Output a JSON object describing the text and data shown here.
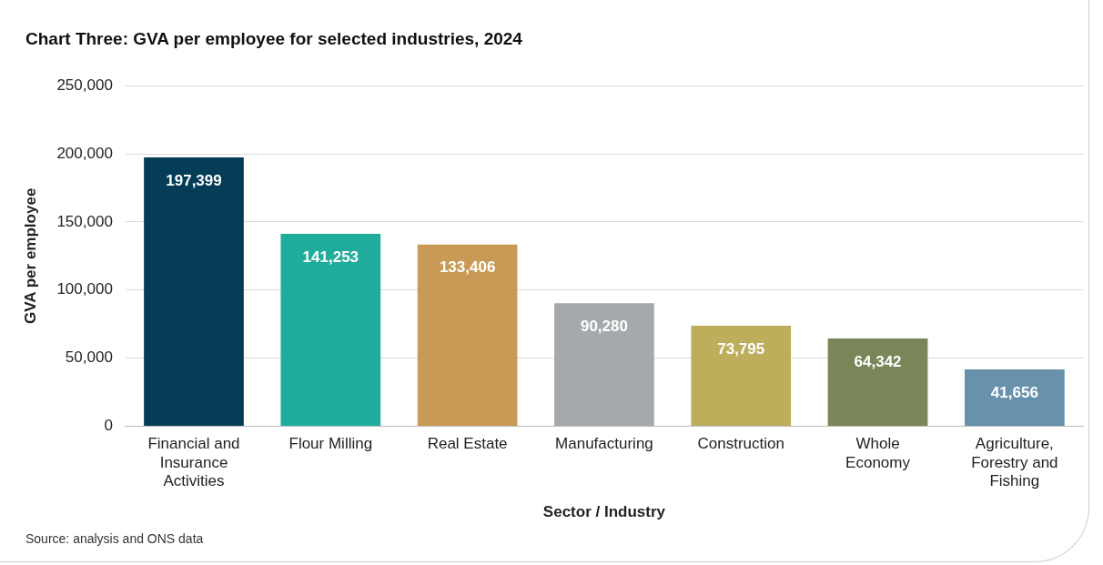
{
  "chart_data": {
    "type": "bar",
    "title": "Chart Three: GVA per employee for selected industries, 2024",
    "xlabel": "Sector / Industry",
    "ylabel": "GVA per employee",
    "categories": [
      "Financial and Insurance Activities",
      "Flour Milling",
      "Real Estate",
      "Manufacturing",
      "Construction",
      "Whole Economy",
      "Agriculture, Forestry and Fishing"
    ],
    "values": [
      197399,
      141253,
      133406,
      90280,
      73795,
      64342,
      41656
    ],
    "colors": [
      "#053d57",
      "#20ac9c",
      "#c99a55",
      "#a5a9ac",
      "#bdae5c",
      "#7a8657",
      "#6891ab"
    ],
    "ylim": [
      0,
      250000
    ],
    "yticks": [
      {
        "value": 0,
        "label": "0"
      },
      {
        "value": 50000,
        "label": "50,000"
      },
      {
        "value": 100000,
        "label": "100,000"
      },
      {
        "value": 150000,
        "label": "150,000"
      },
      {
        "value": 200000,
        "label": "200,000"
      },
      {
        "value": 250000,
        "label": "250,000"
      }
    ],
    "value_labels": [
      "197,399",
      "141,253",
      "133,406",
      "90,280",
      "73,795",
      "64,342",
      "41,656"
    ],
    "grid": "y",
    "legend": false,
    "annotations": [
      "Source: analysis and ONS data"
    ]
  }
}
